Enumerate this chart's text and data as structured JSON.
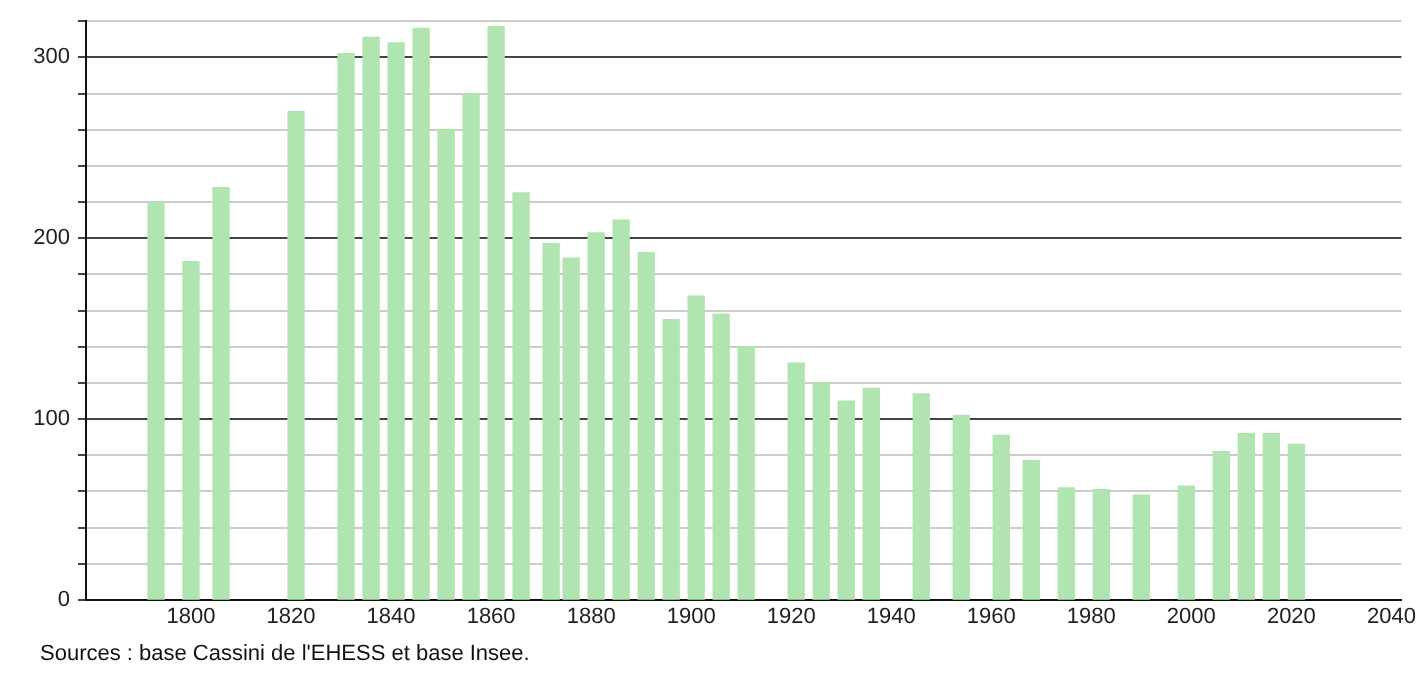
{
  "chart_data": {
    "type": "bar",
    "x": [
      1793,
      1800,
      1806,
      1821,
      1831,
      1836,
      1841,
      1846,
      1851,
      1856,
      1861,
      1866,
      1872,
      1876,
      1881,
      1886,
      1891,
      1896,
      1901,
      1906,
      1911,
      1921,
      1926,
      1931,
      1936,
      1946,
      1954,
      1962,
      1968,
      1975,
      1982,
      1990,
      1999,
      2006,
      2011,
      2016,
      2021
    ],
    "values": [
      220,
      187,
      228,
      270,
      302,
      311,
      308,
      316,
      260,
      280,
      317,
      225,
      197,
      189,
      203,
      210,
      192,
      155,
      168,
      158,
      140,
      131,
      120,
      110,
      117,
      114,
      102,
      91,
      77,
      62,
      61,
      58,
      63,
      82,
      92,
      92,
      86
    ],
    "color": "#b0e4b0",
    "xlim": [
      1779,
      2042
    ],
    "xticks": [
      1800,
      1820,
      1840,
      1860,
      1880,
      1900,
      1920,
      1940,
      1960,
      1980,
      2000,
      2020,
      2040
    ],
    "ylim": [
      0,
      320
    ],
    "yticks": [
      0,
      {
        "value": 20,
        "label": null
      },
      {
        "value": 40,
        "label": null
      },
      {
        "value": 60,
        "label": null
      },
      {
        "value": 80,
        "label": null
      },
      100,
      {
        "value": 120,
        "label": null
      },
      {
        "value": 140,
        "label": null
      },
      {
        "value": 160,
        "label": null
      },
      {
        "value": 180,
        "label": null
      },
      200,
      {
        "value": 220,
        "label": null
      },
      {
        "value": 240,
        "label": null
      },
      {
        "value": 260,
        "label": null
      },
      {
        "value": 280,
        "label": null
      },
      300,
      {
        "value": 320,
        "label": null
      }
    ],
    "grid": "y",
    "legend": false,
    "annotations": [
      "Sources : base Cassini de l'EHESS et base Insee."
    ]
  }
}
